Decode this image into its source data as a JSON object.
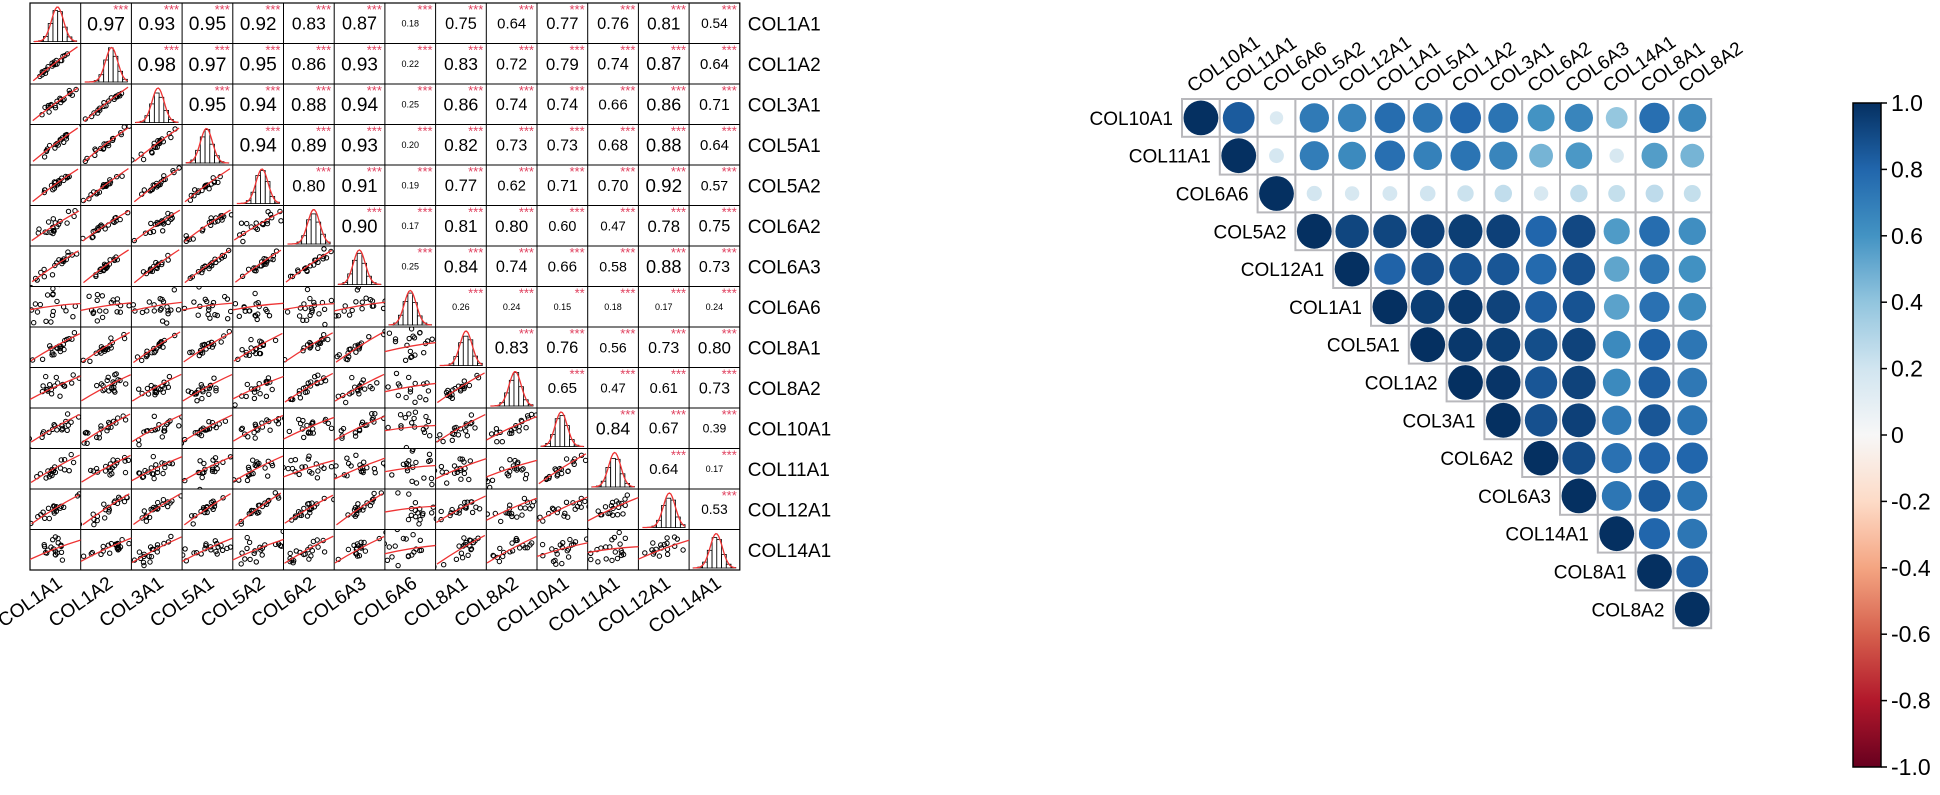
{
  "chart_data": [
    {
      "type": "scatter-matrix",
      "variables": [
        "COL1A1",
        "COL1A2",
        "COL3A1",
        "COL5A1",
        "COL5A2",
        "COL6A2",
        "COL6A3",
        "COL6A6",
        "COL8A1",
        "COL8A2",
        "COL10A1",
        "COL11A1",
        "COL12A1",
        "COL14A1"
      ],
      "coefficients": [
        [
          null,
          0.97,
          0.93,
          0.95,
          0.92,
          0.83,
          0.87,
          0.18,
          0.75,
          0.64,
          0.77,
          0.76,
          0.81,
          0.54
        ],
        [
          null,
          null,
          0.98,
          0.97,
          0.95,
          0.86,
          0.93,
          0.22,
          0.83,
          0.72,
          0.79,
          0.74,
          0.87,
          0.64
        ],
        [
          null,
          null,
          null,
          0.95,
          0.94,
          0.88,
          0.94,
          0.25,
          0.86,
          0.74,
          0.74,
          0.66,
          0.86,
          0.71
        ],
        [
          null,
          null,
          null,
          null,
          0.94,
          0.89,
          0.93,
          0.2,
          0.82,
          0.73,
          0.73,
          0.68,
          0.88,
          0.64
        ],
        [
          null,
          null,
          null,
          null,
          null,
          0.8,
          0.91,
          0.19,
          0.77,
          0.62,
          0.71,
          0.7,
          0.92,
          0.57
        ],
        [
          null,
          null,
          null,
          null,
          null,
          null,
          0.9,
          0.17,
          0.81,
          0.8,
          0.6,
          0.47,
          0.78,
          0.75
        ],
        [
          null,
          null,
          null,
          null,
          null,
          null,
          null,
          0.25,
          0.84,
          0.74,
          0.66,
          0.58,
          0.88,
          0.73
        ],
        [
          null,
          null,
          null,
          null,
          null,
          null,
          null,
          null,
          0.26,
          0.24,
          0.15,
          0.18,
          0.17,
          0.24
        ],
        [
          null,
          null,
          null,
          null,
          null,
          null,
          null,
          null,
          null,
          0.83,
          0.76,
          0.56,
          0.73,
          0.8
        ],
        [
          null,
          null,
          null,
          null,
          null,
          null,
          null,
          null,
          null,
          null,
          0.65,
          0.47,
          0.61,
          0.73
        ],
        [
          null,
          null,
          null,
          null,
          null,
          null,
          null,
          null,
          null,
          null,
          null,
          0.84,
          0.67,
          0.39
        ],
        [
          null,
          null,
          null,
          null,
          null,
          null,
          null,
          null,
          null,
          null,
          null,
          null,
          0.64,
          0.17
        ],
        [
          null,
          null,
          null,
          null,
          null,
          null,
          null,
          null,
          null,
          null,
          null,
          null,
          null,
          0.53
        ],
        [
          null,
          null,
          null,
          null,
          null,
          null,
          null,
          null,
          null,
          null,
          null,
          null,
          null,
          null
        ]
      ],
      "stars_default": "***",
      "stars_override": {
        "7-10": "**"
      }
    },
    {
      "type": "correlation-circle-heatmap",
      "variables": [
        "COL10A1",
        "COL11A1",
        "COL6A6",
        "COL5A2",
        "COL12A1",
        "COL1A1",
        "COL5A1",
        "COL1A2",
        "COL3A1",
        "COL6A2",
        "COL6A3",
        "COL14A1",
        "COL8A1",
        "COL8A2"
      ],
      "colorbar_ticks": [
        "1.0",
        "0.8",
        "0.6",
        "0.4",
        "0.2",
        "0",
        "-0.2",
        "-0.4",
        "-0.6",
        "-0.8",
        "-1.0"
      ],
      "colorbar_range": [
        -1.0,
        1.0
      ],
      "colors": {
        "positive": "#053061",
        "neutral": "#f7f7f7",
        "negative": "#67001f",
        "grid": "#b8b8bc"
      }
    }
  ]
}
